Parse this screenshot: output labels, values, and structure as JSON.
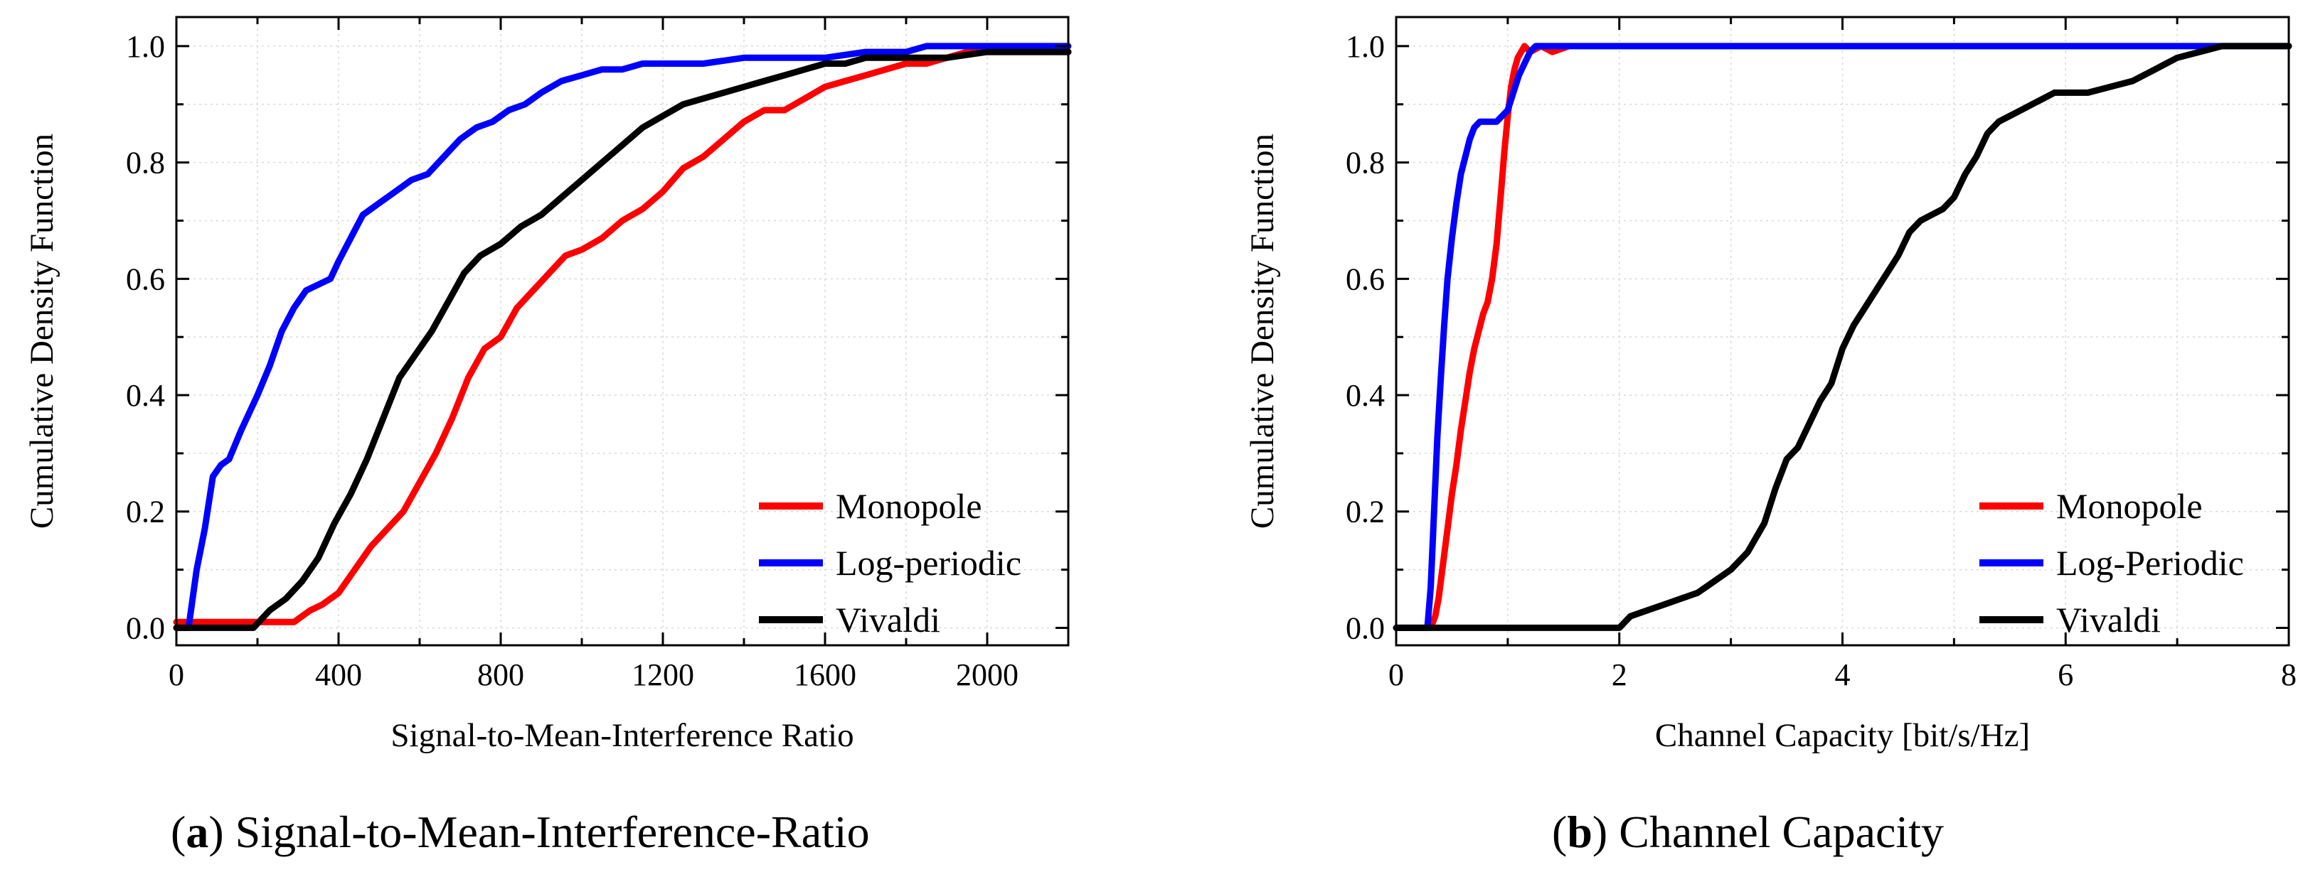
{
  "chart_data": [
    {
      "type": "line",
      "caption_letter": "a",
      "caption_text": "Signal-to-Mean-Interference-Ratio",
      "xlabel": "Signal-to-Mean-Interference Ratio",
      "ylabel": "Cumulative Density Function",
      "xlim": [
        0,
        2200
      ],
      "ylim": [
        -0.03,
        1.05
      ],
      "xticks": [
        0,
        400,
        800,
        1200,
        1600,
        2000
      ],
      "yticks": [
        0.0,
        0.2,
        0.4,
        0.6,
        0.8,
        1.0
      ],
      "xtick_labels": [
        "0",
        "400",
        "800",
        "1200",
        "1600",
        "2000"
      ],
      "ytick_labels": [
        "0.0",
        "0.2",
        "0.4",
        "0.6",
        "0.8",
        "1.0"
      ],
      "grid": true,
      "legend_position": "bottom-right",
      "series": [
        {
          "name": "Monopole",
          "color": "#ff0000",
          "x": [
            0,
            290,
            330,
            360,
            400,
            440,
            480,
            520,
            560,
            600,
            640,
            680,
            720,
            760,
            800,
            840,
            880,
            920,
            960,
            1000,
            1050,
            1100,
            1150,
            1200,
            1250,
            1300,
            1350,
            1400,
            1450,
            1500,
            1550,
            1600,
            1650,
            1700,
            1750,
            1800,
            1850,
            1900,
            1950,
            2000,
            2100,
            2200
          ],
          "y": [
            0.01,
            0.01,
            0.03,
            0.04,
            0.06,
            0.1,
            0.14,
            0.17,
            0.2,
            0.25,
            0.3,
            0.36,
            0.43,
            0.48,
            0.5,
            0.55,
            0.58,
            0.61,
            0.64,
            0.65,
            0.67,
            0.7,
            0.72,
            0.75,
            0.79,
            0.81,
            0.84,
            0.87,
            0.89,
            0.89,
            0.91,
            0.93,
            0.94,
            0.95,
            0.96,
            0.97,
            0.97,
            0.98,
            0.99,
            0.99,
            0.99,
            0.99
          ]
        },
        {
          "name": "Log-periodic",
          "color": "#0000ff",
          "x": [
            0,
            30,
            50,
            70,
            90,
            110,
            130,
            160,
            180,
            200,
            230,
            260,
            290,
            320,
            350,
            380,
            400,
            430,
            460,
            500,
            540,
            580,
            620,
            660,
            700,
            740,
            780,
            820,
            860,
            900,
            950,
            1000,
            1050,
            1100,
            1150,
            1200,
            1300,
            1400,
            1500,
            1600,
            1700,
            1800,
            1850,
            1900,
            2000,
            2200
          ],
          "y": [
            0.0,
            0.0,
            0.1,
            0.17,
            0.26,
            0.28,
            0.29,
            0.34,
            0.37,
            0.4,
            0.45,
            0.51,
            0.55,
            0.58,
            0.59,
            0.6,
            0.63,
            0.67,
            0.71,
            0.73,
            0.75,
            0.77,
            0.78,
            0.81,
            0.84,
            0.86,
            0.87,
            0.89,
            0.9,
            0.92,
            0.94,
            0.95,
            0.96,
            0.96,
            0.97,
            0.97,
            0.97,
            0.98,
            0.98,
            0.98,
            0.99,
            0.99,
            1.0,
            1.0,
            1.0,
            1.0
          ]
        },
        {
          "name": "Vivaldi",
          "color": "#000000",
          "x": [
            0,
            190,
            230,
            270,
            310,
            350,
            390,
            430,
            470,
            510,
            550,
            590,
            630,
            670,
            710,
            750,
            800,
            850,
            900,
            950,
            1000,
            1050,
            1100,
            1150,
            1200,
            1250,
            1300,
            1350,
            1400,
            1450,
            1500,
            1550,
            1600,
            1650,
            1700,
            1800,
            1900,
            2000,
            2100,
            2200
          ],
          "y": [
            0.0,
            0.0,
            0.03,
            0.05,
            0.08,
            0.12,
            0.18,
            0.23,
            0.29,
            0.36,
            0.43,
            0.47,
            0.51,
            0.56,
            0.61,
            0.64,
            0.66,
            0.69,
            0.71,
            0.74,
            0.77,
            0.8,
            0.83,
            0.86,
            0.88,
            0.9,
            0.91,
            0.92,
            0.93,
            0.94,
            0.95,
            0.96,
            0.97,
            0.97,
            0.98,
            0.98,
            0.98,
            0.99,
            0.99,
            0.99
          ]
        }
      ]
    },
    {
      "type": "line",
      "caption_letter": "b",
      "caption_text": "Channel Capacity",
      "xlabel": "Channel Capacity [bit/s/Hz]",
      "ylabel": "Cumulative Density Function",
      "xlim": [
        0,
        8
      ],
      "ylim": [
        -0.03,
        1.05
      ],
      "xticks": [
        0,
        2,
        4,
        6,
        8
      ],
      "yticks": [
        0.0,
        0.2,
        0.4,
        0.6,
        0.8,
        1.0
      ],
      "xtick_labels": [
        "0",
        "2",
        "4",
        "6",
        "8"
      ],
      "ytick_labels": [
        "0.0",
        "0.2",
        "0.4",
        "0.6",
        "0.8",
        "1.0"
      ],
      "grid": true,
      "legend_position": "bottom-right",
      "series": [
        {
          "name": "Monopole",
          "color": "#ff0000",
          "x": [
            0.31,
            0.35,
            0.38,
            0.42,
            0.46,
            0.5,
            0.54,
            0.58,
            0.62,
            0.66,
            0.7,
            0.74,
            0.78,
            0.82,
            0.86,
            0.9,
            0.94,
            0.97,
            1.0,
            1.03,
            1.06,
            1.09,
            1.12,
            1.15,
            1.2,
            1.3,
            1.4,
            1.55
          ],
          "y": [
            0.0,
            0.02,
            0.05,
            0.11,
            0.17,
            0.23,
            0.28,
            0.34,
            0.39,
            0.44,
            0.48,
            0.51,
            0.54,
            0.56,
            0.6,
            0.66,
            0.75,
            0.82,
            0.88,
            0.93,
            0.96,
            0.98,
            0.99,
            1.0,
            0.99,
            1.0,
            0.99,
            1.0
          ]
        },
        {
          "name": "Log-Periodic",
          "color": "#0000ff",
          "x": [
            0,
            0.28,
            0.31,
            0.34,
            0.37,
            0.4,
            0.43,
            0.46,
            0.5,
            0.54,
            0.58,
            0.62,
            0.66,
            0.7,
            0.75,
            0.8,
            0.9,
            1.0,
            1.05,
            1.1,
            1.15,
            1.2,
            1.25,
            1.3,
            2.0,
            4.0,
            6.0,
            8.0
          ],
          "y": [
            0.0,
            0.0,
            0.07,
            0.2,
            0.33,
            0.43,
            0.52,
            0.6,
            0.67,
            0.73,
            0.78,
            0.81,
            0.84,
            0.86,
            0.87,
            0.87,
            0.87,
            0.89,
            0.92,
            0.95,
            0.97,
            0.99,
            1.0,
            1.0,
            1.0,
            1.0,
            1.0,
            1.0
          ]
        },
        {
          "name": "Vivaldi",
          "color": "#000000",
          "x": [
            0,
            2.0,
            2.1,
            2.25,
            2.4,
            2.55,
            2.7,
            2.85,
            3.0,
            3.15,
            3.3,
            3.4,
            3.5,
            3.6,
            3.7,
            3.8,
            3.9,
            4.0,
            4.1,
            4.2,
            4.3,
            4.4,
            4.5,
            4.6,
            4.7,
            4.8,
            4.9,
            5.0,
            5.1,
            5.2,
            5.3,
            5.4,
            5.5,
            5.6,
            5.7,
            5.8,
            5.9,
            6.0,
            6.2,
            6.4,
            6.6,
            6.8,
            7.0,
            7.2,
            7.4,
            7.6,
            8.0
          ],
          "y": [
            0.0,
            0.0,
            0.02,
            0.03,
            0.04,
            0.05,
            0.06,
            0.08,
            0.1,
            0.13,
            0.18,
            0.24,
            0.29,
            0.31,
            0.35,
            0.39,
            0.42,
            0.48,
            0.52,
            0.55,
            0.58,
            0.61,
            0.64,
            0.68,
            0.7,
            0.71,
            0.72,
            0.74,
            0.78,
            0.81,
            0.85,
            0.87,
            0.88,
            0.89,
            0.9,
            0.91,
            0.92,
            0.92,
            0.92,
            0.93,
            0.94,
            0.96,
            0.98,
            0.99,
            1.0,
            1.0,
            1.0
          ]
        }
      ]
    }
  ]
}
